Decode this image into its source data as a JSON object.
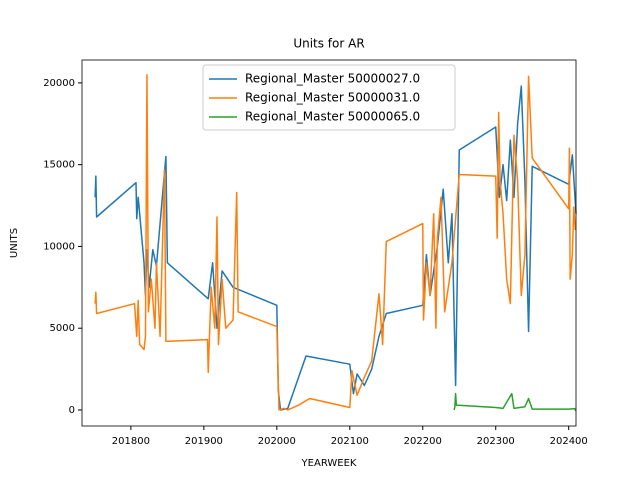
{
  "chart_data": {
    "type": "line",
    "title": "Units for AR",
    "xlabel": "YEARWEEK",
    "ylabel": "UNITS",
    "xlim": [
      201733,
      202410
    ],
    "ylim": [
      -980,
      21400
    ],
    "xticks": [
      201800,
      201900,
      202000,
      202100,
      202200,
      202300,
      202400
    ],
    "yticks": [
      0,
      5000,
      10000,
      15000,
      20000
    ],
    "legend": "upper center",
    "series": [
      {
        "name": "Regional_Master 50000027.0",
        "color": "#1f77b4",
        "x": [
          201751,
          201752,
          201753,
          201807,
          201808,
          201810,
          201812,
          201815,
          201818,
          201820,
          201822,
          201825,
          201830,
          201835,
          201845,
          201848,
          201850,
          201906,
          201912,
          201918,
          201925,
          201940,
          202000,
          202002,
          202005,
          202015,
          202040,
          202100,
          202105,
          202110,
          202120,
          202130,
          202140,
          202150,
          202200,
          202205,
          202210,
          202220,
          202228,
          202235,
          202240,
          202245,
          202250,
          202300,
          202305,
          202310,
          202315,
          202320,
          202325,
          202330,
          202335,
          202340,
          202345,
          202350,
          202400,
          202405,
          202410
        ],
        "values": [
          13000,
          14300,
          11800,
          13900,
          11700,
          13000,
          12000,
          10500,
          9000,
          7000,
          9800,
          7500,
          9800,
          8800,
          14000,
          15500,
          9000,
          6800,
          9000,
          5000,
          8500,
          7500,
          6400,
          1200,
          0,
          100,
          3300,
          2800,
          1000,
          2200,
          1500,
          2500,
          4500,
          5900,
          6400,
          9500,
          7000,
          10000,
          13500,
          9000,
          12000,
          1500,
          15900,
          17300,
          13000,
          15000,
          12800,
          16500,
          13000,
          17500,
          19800,
          14000,
          4800,
          14900,
          13800,
          15600,
          12000
        ]
      },
      {
        "name": "Regional_Master 50000031.0",
        "color": "#ff7f0e",
        "x": [
          201751,
          201752,
          201753,
          201805,
          201808,
          201810,
          201812,
          201818,
          201820,
          201822,
          201824,
          201828,
          201833,
          201835,
          201840,
          201846,
          201848,
          201852,
          201905,
          201906,
          201910,
          201915,
          201918,
          201920,
          201925,
          201930,
          201940,
          201945,
          201947,
          202000,
          202003,
          202010,
          202015,
          202030,
          202045,
          202100,
          202103,
          202110,
          202120,
          202130,
          202140,
          202145,
          202150,
          202200,
          202201,
          202205,
          202210,
          202215,
          202218,
          202220,
          202225,
          202230,
          202240,
          202250,
          202300,
          202302,
          202304,
          202306,
          202310,
          202315,
          202320,
          202325,
          202330,
          202335,
          202340,
          202345,
          202350,
          202400,
          202401,
          202402,
          202405,
          202407,
          202409
        ],
        "values": [
          6500,
          7200,
          5900,
          6500,
          4500,
          6700,
          4000,
          3700,
          4500,
          20500,
          6000,
          8000,
          5000,
          9000,
          4500,
          14700,
          4200,
          4200,
          4300,
          2300,
          7500,
          5000,
          11800,
          4000,
          8000,
          5000,
          5500,
          13300,
          6000,
          5100,
          0,
          100,
          0,
          300,
          700,
          150,
          2400,
          900,
          2000,
          3000,
          7100,
          4000,
          10300,
          11400,
          5500,
          9000,
          7000,
          12000,
          5000,
          10500,
          13000,
          6000,
          9000,
          14400,
          14300,
          10500,
          18200,
          14000,
          12000,
          8000,
          6500,
          16800,
          14000,
          7000,
          9500,
          20400,
          15400,
          12300,
          16000,
          8000,
          9500,
          12400,
          11000
        ]
      },
      {
        "name": "Regional_Master 50000065.0",
        "color": "#2ca02c",
        "x": [
          202243,
          202244,
          202245,
          202246,
          202300,
          202310,
          202322,
          202325,
          202340,
          202345,
          202350,
          202400,
          202408,
          202410
        ],
        "values": [
          0,
          200,
          1000,
          300,
          150,
          100,
          1000,
          100,
          200,
          700,
          50,
          50,
          80,
          -50
        ]
      }
    ]
  }
}
